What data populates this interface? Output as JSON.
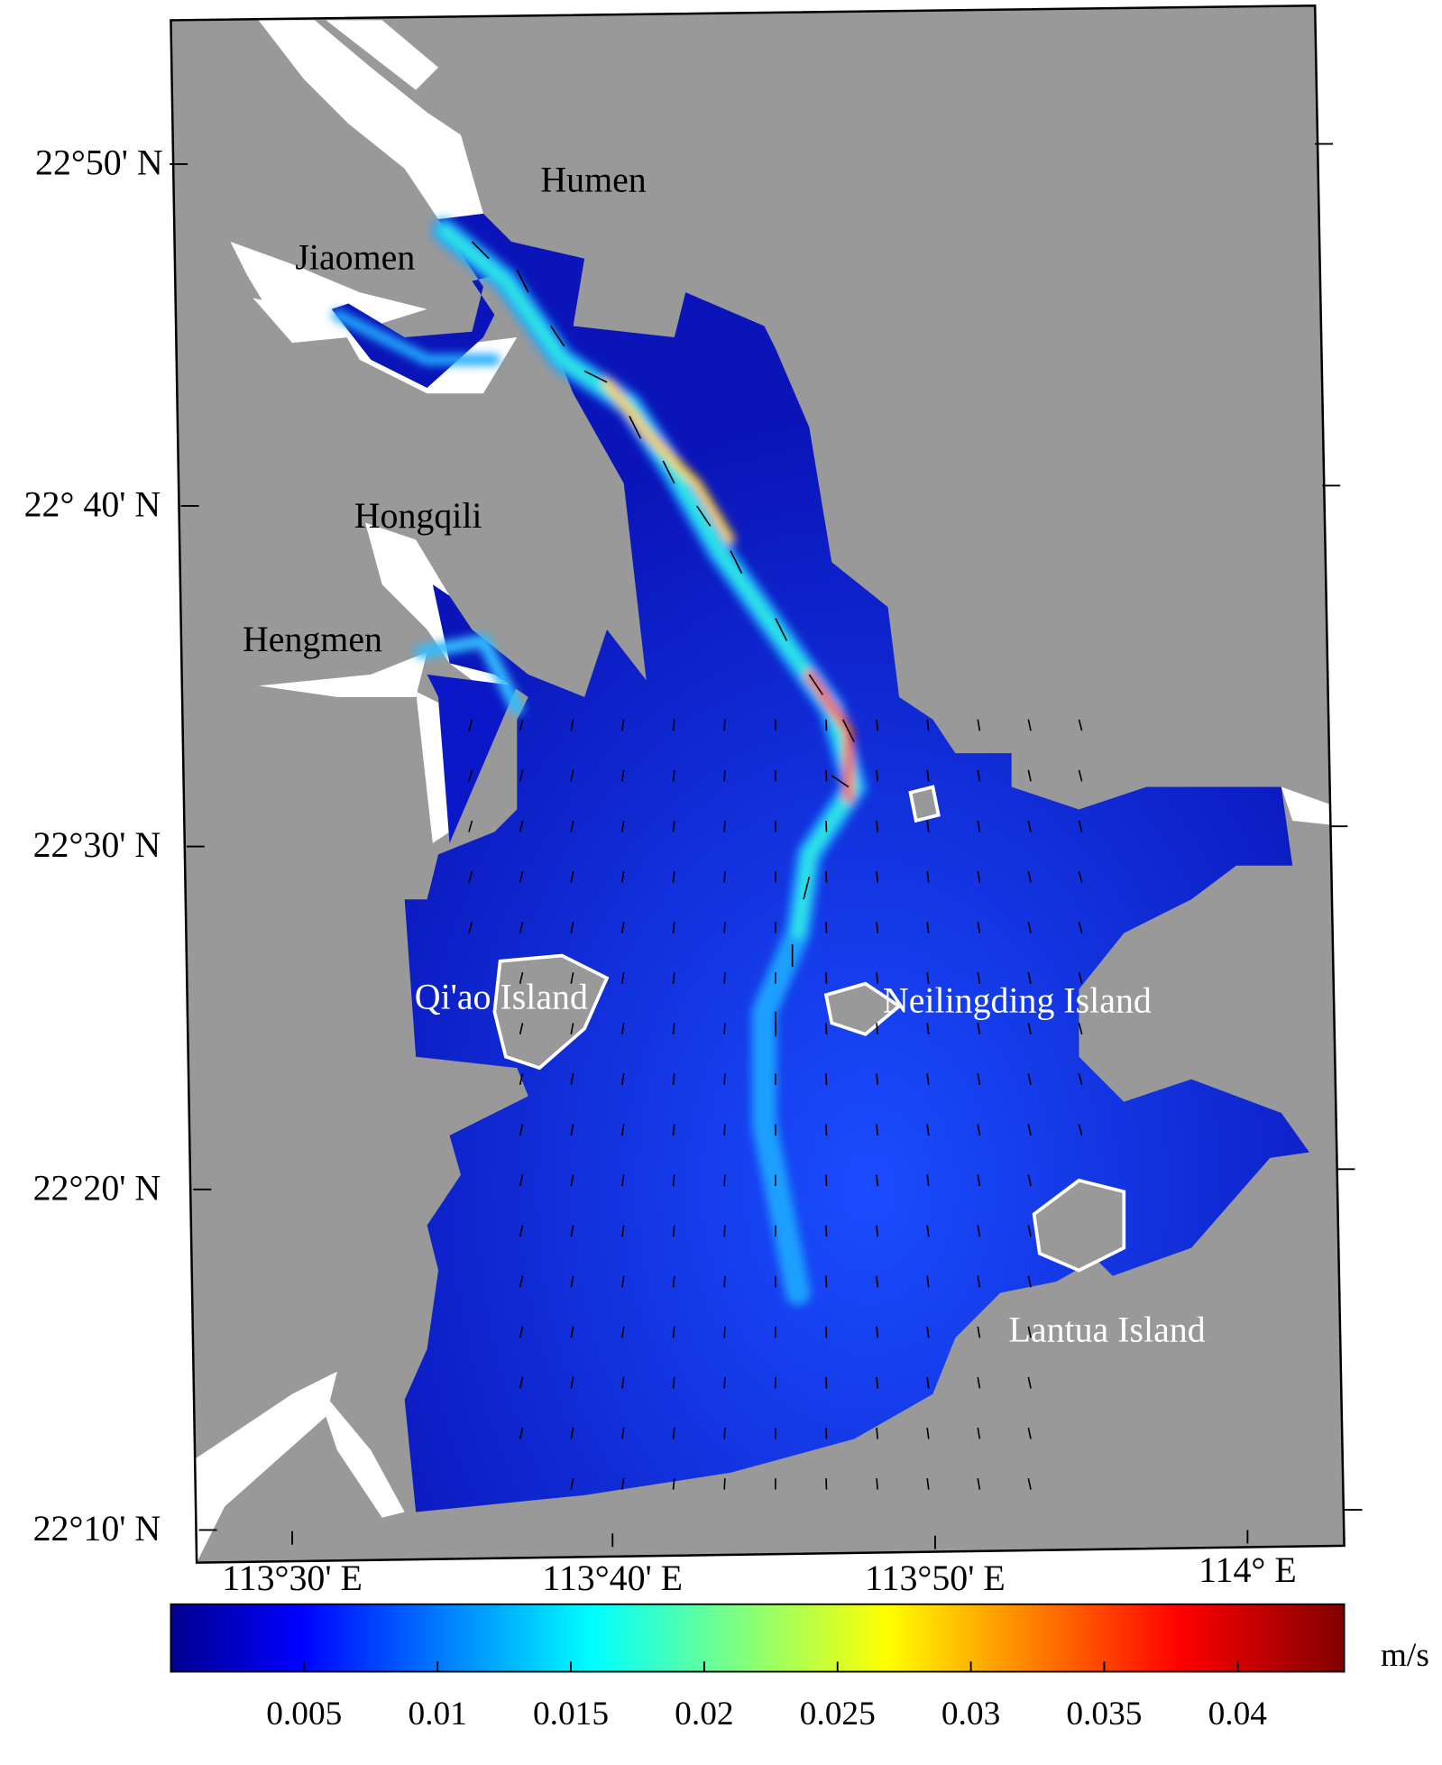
{
  "map": {
    "place_labels": [
      "Humen",
      "Jiaomen",
      "Hongqili",
      "Hengmen",
      "Qi'ao Island",
      "Neilingding Island",
      "Lantua Island"
    ],
    "lat_labels": [
      "22°50' N",
      "22° 40' N",
      "22°30' N",
      "22°20' N",
      "22°10' N"
    ],
    "lon_labels": [
      "113°30' E",
      "113°40' E",
      "113°50' E",
      "114° E"
    ]
  },
  "colorbar": {
    "clim": [
      0,
      0.044
    ],
    "ticks": [
      0.005,
      0.01,
      0.015,
      0.02,
      0.025,
      0.03,
      0.035,
      0.04
    ],
    "label": "m/s"
  }
}
